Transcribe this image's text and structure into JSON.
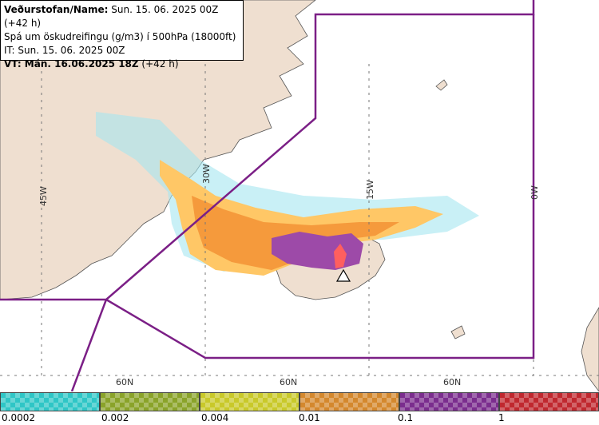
{
  "info": {
    "line1_bold": "Veðurstofan/Name:",
    "line1_rest": " Sun. 15. 06. 2025 00Z (+42 h)",
    "line2": "Spá um öskudreifingu (g/m3) í 500hPa (18000ft)",
    "line3": "IT: Sun. 15. 06. 2025 00Z",
    "line4_bold": "VT: Mán. 16.06.2025 18Z",
    "line4_rest": " (+42 h)"
  },
  "grid_labels": {
    "lon_45w": "45W",
    "lon_30w": "30W",
    "lon_15w": "15W",
    "lon_0w": "0W",
    "lat_a": "60N",
    "lat_b": "60N",
    "lat_c": "60N"
  },
  "legend": {
    "ticks": [
      "0.0002",
      "0.002",
      "0.004",
      "0.01",
      "0.1",
      "1"
    ],
    "colors": [
      "#2fc6c6",
      "#8aa32a",
      "#c9c92a",
      "#d4882e",
      "#7b2d8e",
      "#c0282f"
    ]
  },
  "map_colors": {
    "land": "#efdfd0",
    "sea": "#ffffff",
    "boundary": "#7b1f86",
    "ash_low": "#ffc766",
    "ash_mid": "#f59a3c",
    "ash_high": "#9d4aa8",
    "ash_max": "#ff5f5f",
    "ash_trace": "#a5e6f0"
  }
}
